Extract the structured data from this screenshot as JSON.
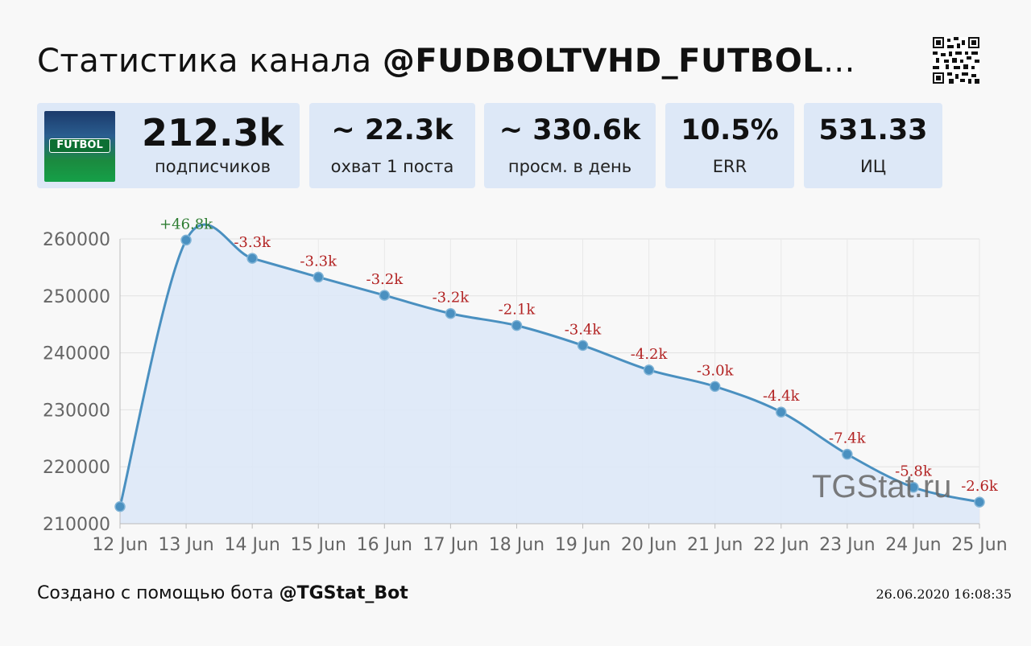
{
  "header": {
    "title_prefix": "Статистика канала ",
    "title_channel": "@FUDBOLTVHD_FUTBOL",
    "title_ellipsis": "..."
  },
  "avatar": {
    "label": "FUTBOL"
  },
  "stats": [
    {
      "value": "212.3k",
      "label": "подписчиков"
    },
    {
      "value": "~ 22.3k",
      "label": "охват 1 поста"
    },
    {
      "value": "~ 330.6k",
      "label": "просм. в день"
    },
    {
      "value": "10.5%",
      "label": "ERR"
    },
    {
      "value": "531.33",
      "label": "ИЦ"
    }
  ],
  "footer": {
    "created_prefix": "Создано с помощью бота ",
    "bot_name": "@TGStat_Bot",
    "timestamp": "26.06.2020 16:08:35"
  },
  "watermark": "TGStat.ru",
  "colors": {
    "line": "#4a90c0",
    "fill": "#dde8f7",
    "positive": "#2e7d32",
    "negative": "#b22222",
    "card_bg": "#dde8f7"
  },
  "chart_data": {
    "type": "area",
    "x": [
      "12 Jun",
      "13 Jun",
      "14 Jun",
      "15 Jun",
      "16 Jun",
      "17 Jun",
      "18 Jun",
      "19 Jun",
      "20 Jun",
      "21 Jun",
      "22 Jun",
      "23 Jun",
      "24 Jun",
      "25 Jun"
    ],
    "series": [
      {
        "values": [
          213000,
          259800,
          256600,
          253300,
          250100,
          246900,
          244800,
          241300,
          237000,
          234100,
          229600,
          222200,
          216400,
          213800
        ],
        "annotations": [
          "",
          "+46.8k",
          "-3.3k",
          "-3.3k",
          "-3.2k",
          "-3.2k",
          "-2.1k",
          "-3.4k",
          "-4.2k",
          "-3.0k",
          "-4.4k",
          "-7.4k",
          "-5.8k",
          "-2.6k"
        ]
      }
    ],
    "yticks": [
      "210000",
      "220000",
      "230000",
      "240000",
      "250000",
      "260000"
    ],
    "ylim": [
      210000,
      260000
    ],
    "grid": true,
    "title": "",
    "xlabel": "",
    "ylabel": ""
  }
}
